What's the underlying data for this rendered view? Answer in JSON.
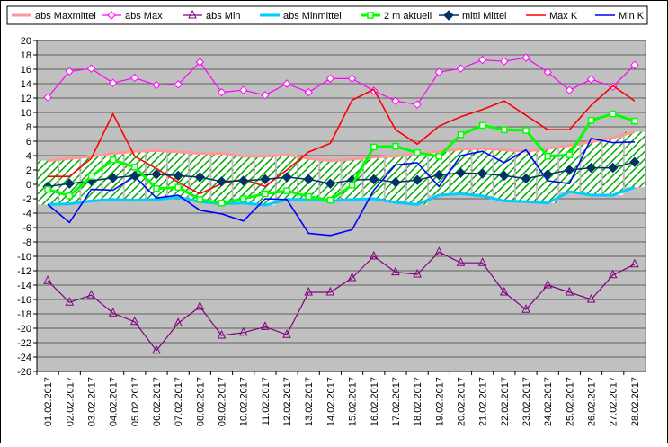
{
  "chart_data": {
    "type": "line",
    "title": "",
    "xlabel": "",
    "ylabel": "",
    "ylim": [
      -26,
      20
    ],
    "y_ticks": [
      "20",
      "18",
      "16",
      "14",
      "12",
      "10",
      "8",
      "6",
      "4",
      "2",
      "0",
      "-2",
      "-4",
      "-6",
      "-8",
      "-10",
      "-12",
      "-14",
      "-16",
      "-18",
      "-20",
      "-22",
      "-24",
      "-26"
    ],
    "categories": [
      "01.02.2017",
      "02.02.2017",
      "03.02.2017",
      "04.02.2017",
      "05.02.2017",
      "06.02.2017",
      "07.02.2017",
      "08.02.2017",
      "09.02.2017",
      "10.02.2017",
      "11.02.2017",
      "12.02.2017",
      "13.02.2017",
      "14.02.2017",
      "15.02.2017",
      "16.02.2017",
      "17.02.2017",
      "18.02.2017",
      "19.02.2017",
      "20.02.2017",
      "21.02.2017",
      "22.02.2017",
      "23.02.2017",
      "24.02.2017",
      "25.02.2017",
      "26.02.2017",
      "27.02.2017",
      "28.02.2017"
    ],
    "legend_position": "top",
    "plot_background": "#c0c0c0",
    "grid": true,
    "series": [
      {
        "name": "abs Maxmittel",
        "color": "#ff9999",
        "marker": "none",
        "values": [
          3.3,
          3.6,
          3.9,
          4.3,
          4.6,
          4.7,
          4.5,
          4.3,
          4.3,
          3.9,
          3.9,
          4.1,
          3.6,
          3.3,
          3.5,
          3.8,
          3.9,
          4.2,
          4.6,
          4.9,
          5.0,
          4.8,
          4.6,
          5.0,
          5.4,
          5.9,
          6.5,
          7.3
        ]
      },
      {
        "name": "abs Max",
        "color": "#ff00ff",
        "marker": "diamond-open",
        "values": [
          12.1,
          15.7,
          16.1,
          14.1,
          14.8,
          13.8,
          13.9,
          17.0,
          12.8,
          13.1,
          12.4,
          14.0,
          12.8,
          14.7,
          14.7,
          13.0,
          11.6,
          11.1,
          15.6,
          16.1,
          17.3,
          17.1,
          17.6,
          15.6,
          13.1,
          14.6,
          13.6,
          16.6
        ]
      },
      {
        "name": "abs Min",
        "color": "#800080",
        "marker": "triangle-open",
        "values": [
          -13.4,
          -16.4,
          -15.4,
          -17.9,
          -19.1,
          -23.1,
          -19.3,
          -17.0,
          -21.0,
          -20.6,
          -19.8,
          -20.9,
          -15.0,
          -15.0,
          -13.0,
          -10.0,
          -12.2,
          -12.5,
          -9.4,
          -10.9,
          -10.9,
          -15.0,
          -17.4,
          -14.0,
          -15.0,
          -16.0,
          -12.6,
          -11.1
        ]
      },
      {
        "name": "abs Minmittel",
        "color": "#00ccff",
        "marker": "none",
        "values": [
          -2.8,
          -2.7,
          -2.3,
          -2.1,
          -2.2,
          -2.1,
          -1.8,
          -2.4,
          -2.7,
          -2.6,
          -2.9,
          -2.1,
          -2.1,
          -2.3,
          -2.1,
          -2.0,
          -2.5,
          -2.8,
          -1.5,
          -1.3,
          -1.6,
          -2.3,
          -2.4,
          -2.6,
          -1.0,
          -1.5,
          -1.5,
          -0.4
        ]
      },
      {
        "name": "2 m aktuell",
        "color": "#00ff00",
        "marker": "square-open",
        "values": [
          -0.7,
          -1.6,
          1.1,
          3.4,
          2.4,
          -0.6,
          -0.4,
          -2.1,
          -2.6,
          -2.0,
          -1.3,
          -0.9,
          -1.7,
          -2.2,
          -0.1,
          5.2,
          5.3,
          4.4,
          3.9,
          6.9,
          8.2,
          7.6,
          7.5,
          3.9,
          4.1,
          8.9,
          9.8,
          8.8
        ]
      },
      {
        "name": "mittl Mittel",
        "color": "#003366",
        "marker": "diamond-filled",
        "values": [
          -0.3,
          0.1,
          0.5,
          0.9,
          1.2,
          1.4,
          1.2,
          1.0,
          0.4,
          0.5,
          0.7,
          1.0,
          0.7,
          0.1,
          0.6,
          0.7,
          0.3,
          0.6,
          1.3,
          1.6,
          1.5,
          1.2,
          0.8,
          1.4,
          2.0,
          2.3,
          2.3,
          3.1
        ]
      },
      {
        "name": "Max K",
        "color": "#ff0000",
        "marker": "none",
        "values": [
          1.1,
          1.1,
          3.6,
          9.8,
          3.9,
          2.2,
          0.3,
          -1.3,
          0.1,
          0.7,
          -0.3,
          2.0,
          4.5,
          5.7,
          11.7,
          13.2,
          7.6,
          5.6,
          8.1,
          9.4,
          10.4,
          11.6,
          9.6,
          7.6,
          7.6,
          11.0,
          13.7,
          11.6
        ]
      },
      {
        "name": "Min K",
        "color": "#0000ff",
        "marker": "none",
        "values": [
          -2.8,
          -5.3,
          -0.7,
          -0.8,
          1.1,
          -1.9,
          -1.5,
          -3.6,
          -4.1,
          -5.1,
          -2.0,
          -2.1,
          -6.8,
          -7.1,
          -6.3,
          -0.8,
          2.7,
          3.0,
          -0.3,
          4.0,
          4.6,
          3.0,
          4.8,
          0.5,
          0.1,
          6.4,
          5.8,
          5.9
        ]
      }
    ]
  }
}
